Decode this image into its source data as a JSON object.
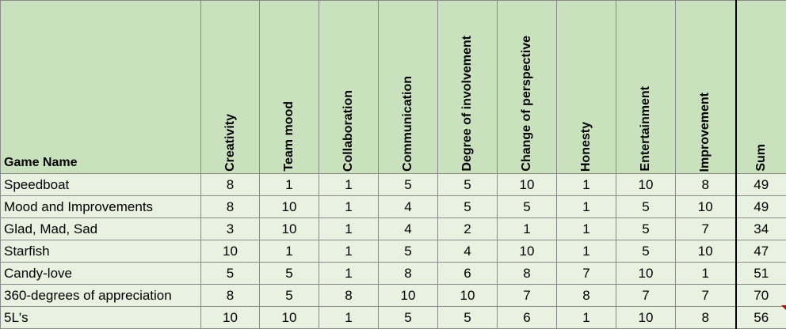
{
  "table": {
    "name_header": "Game Name",
    "columns": [
      "Creativity",
      "Team mood",
      "Collaboration",
      "Communication",
      "Degree of involvement",
      "Change of perspective",
      "Honesty",
      "Entertainment",
      "Improvement",
      "Sum"
    ],
    "rows": [
      {
        "name": "Speedboat",
        "values": [
          "8",
          "1",
          "1",
          "5",
          "5",
          "10",
          "1",
          "10",
          "8",
          "49"
        ]
      },
      {
        "name": "Mood and Improvements",
        "values": [
          "8",
          "10",
          "1",
          "4",
          "5",
          "5",
          "1",
          "5",
          "10",
          "49"
        ]
      },
      {
        "name": "Glad, Mad, Sad",
        "values": [
          "3",
          "10",
          "1",
          "4",
          "2",
          "1",
          "1",
          "5",
          "7",
          "34"
        ]
      },
      {
        "name": "Starfish",
        "values": [
          "10",
          "1",
          "1",
          "5",
          "4",
          "10",
          "1",
          "5",
          "10",
          "47"
        ]
      },
      {
        "name": "Candy-love",
        "values": [
          "5",
          "5",
          "1",
          "8",
          "6",
          "8",
          "7",
          "10",
          "1",
          "51"
        ]
      },
      {
        "name": "360-degrees of appreciation",
        "values": [
          "8",
          "5",
          "8",
          "10",
          "10",
          "7",
          "8",
          "7",
          "7",
          "70"
        ]
      },
      {
        "name": "5L's",
        "values": [
          "10",
          "10",
          "1",
          "5",
          "5",
          "6",
          "1",
          "10",
          "8",
          "56"
        ]
      }
    ]
  },
  "colors": {
    "header_bg": "#c9e1bd",
    "cell_bg": "#e9f2e1",
    "grid": "#8a8a8a"
  }
}
